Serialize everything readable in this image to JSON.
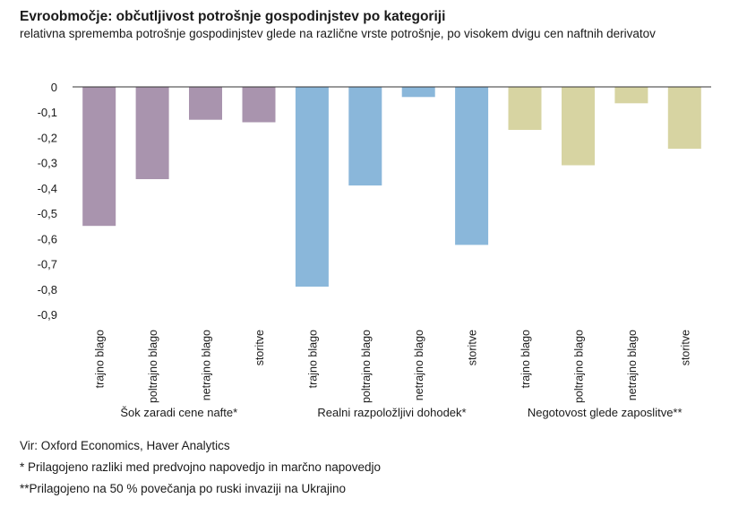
{
  "title": "Evroobmočje: občutljivost potrošnje gospodinjstev po kategoriji",
  "subtitle": "relativna sprememba potrošnje gospodinjstev glede na različne vrste potrošnje, po visokem dvigu cen naftnih derivatov",
  "chart_data": {
    "type": "bar",
    "ylim": [
      -0.9,
      0
    ],
    "yticks": [
      "0",
      "-0,1",
      "-0,2",
      "-0,3",
      "-0,4",
      "-0,5",
      "-0,6",
      "-0,7",
      "-0,8",
      "-0,9"
    ],
    "groups": [
      {
        "label": "Šok zaradi cene nafte*",
        "color": "#a994ae",
        "categories": [
          "trajno blago",
          "poltrajno blago",
          "netrajno blago",
          "storitve"
        ],
        "values": [
          -0.55,
          -0.365,
          -0.13,
          -0.14
        ]
      },
      {
        "label": "Realni razpoložljivi dohodek*",
        "color": "#8ab7da",
        "categories": [
          "trajno blago",
          "poltrajno blago",
          "netrajno blago",
          "storitve"
        ],
        "values": [
          -0.79,
          -0.39,
          -0.04,
          -0.625
        ]
      },
      {
        "label": "Negotovost glede zaposlitve**",
        "color": "#d7d4a2",
        "categories": [
          "trajno blago",
          "poltrajno blago",
          "netrajno blago",
          "storitve"
        ],
        "values": [
          -0.17,
          -0.31,
          -0.065,
          -0.245
        ]
      }
    ]
  },
  "notes": {
    "source": "Vir: Oxford Economics, Haver Analytics",
    "note1": "*  Prilagojeno razliki med predvojno napovedjo in marčno napovedjo",
    "note2": "**Prilagojeno na 50 % povečanja po ruski invaziji na Ukrajino"
  }
}
